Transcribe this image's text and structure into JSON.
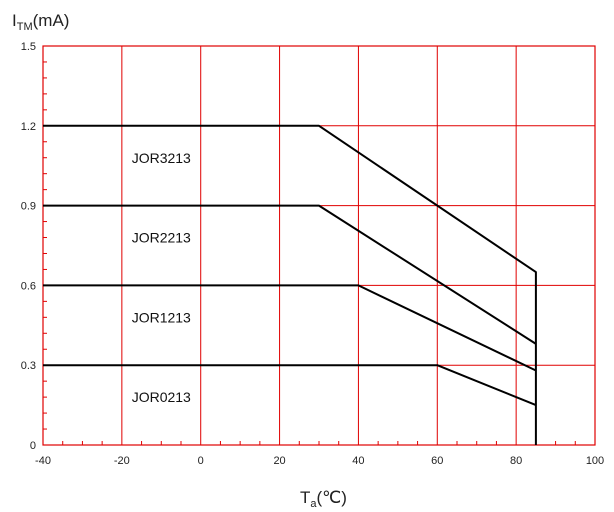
{
  "chart_data": {
    "type": "line",
    "ylabel": {
      "main": "I",
      "sub": "TM",
      "unit": "(mA)"
    },
    "xlabel": {
      "main": "T",
      "sub": "a",
      "unit": "(℃)"
    },
    "xlim": [
      -40,
      100
    ],
    "ylim": [
      0,
      1.5
    ],
    "x_ticks": [
      "-40",
      "-20",
      "0",
      "20",
      "40",
      "60",
      "80",
      "100"
    ],
    "y_ticks": [
      "0",
      "0.3",
      "0.6",
      "0.9",
      "1.2",
      "1.5"
    ],
    "grid": true,
    "colors": {
      "grid": "#e00000",
      "frame": "#e00000",
      "line": "#000000"
    },
    "series": [
      {
        "name": "JOR3213",
        "x": [
          -40,
          30,
          85,
          85
        ],
        "y": [
          1.2,
          1.2,
          0.65,
          0
        ]
      },
      {
        "name": "JOR2213",
        "x": [
          -40,
          30,
          85
        ],
        "y": [
          0.9,
          0.9,
          0.38
        ]
      },
      {
        "name": "JOR1213",
        "x": [
          -40,
          40,
          85
        ],
        "y": [
          0.6,
          0.6,
          0.28
        ]
      },
      {
        "name": "JOR0213",
        "x": [
          -40,
          60,
          85
        ],
        "y": [
          0.3,
          0.3,
          0.15
        ]
      }
    ]
  }
}
